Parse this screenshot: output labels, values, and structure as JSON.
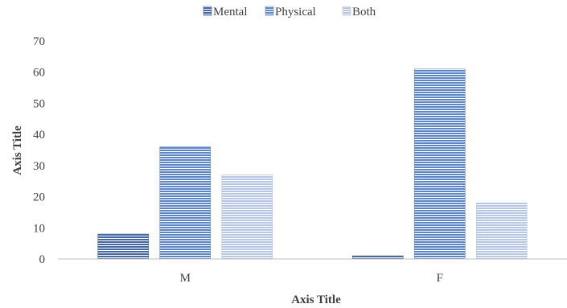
{
  "chart_data": {
    "type": "bar",
    "categories": [
      "M",
      "F"
    ],
    "series": [
      {
        "name": "Mental",
        "values": [
          8,
          1
        ]
      },
      {
        "name": "Physical",
        "values": [
          36,
          61
        ]
      },
      {
        "name": "Both",
        "values": [
          27,
          18
        ]
      }
    ],
    "xlabel": "Axis Title",
    "ylabel": "Axis Title",
    "ylim": [
      0,
      70
    ],
    "yticks": [
      0,
      10,
      20,
      30,
      40,
      50,
      60,
      70
    ],
    "legend_position": "top",
    "grid": false,
    "colors": {
      "Mental": "#44679f",
      "Physical": "#5f86c4",
      "Both": "#b6c6e3",
      "axis": "#bfbfbf",
      "text": "#404040"
    }
  }
}
